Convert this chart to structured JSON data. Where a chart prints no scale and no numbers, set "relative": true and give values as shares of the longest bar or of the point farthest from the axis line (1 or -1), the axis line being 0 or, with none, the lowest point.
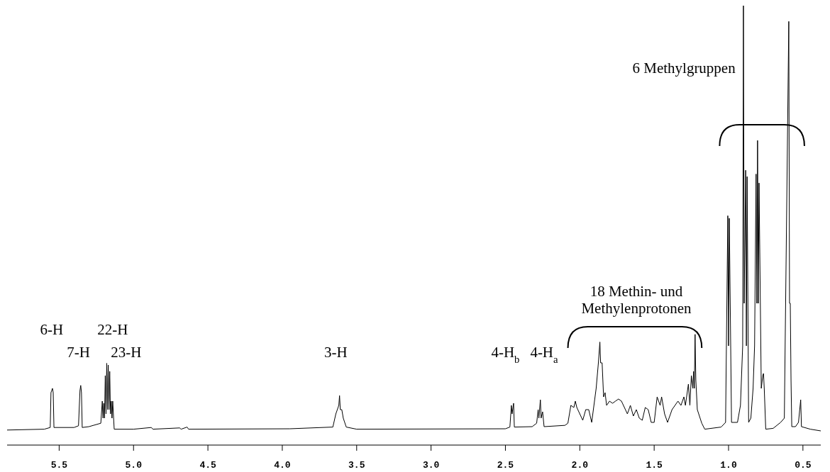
{
  "chart_data": {
    "type": "line",
    "relative": true,
    "xlim": [
      5.85,
      0.38
    ],
    "xticks": [
      {
        "value": 5.5,
        "label": "5.5"
      },
      {
        "value": 5.0,
        "label": "5.0"
      },
      {
        "value": 4.5,
        "label": "4.5"
      },
      {
        "value": 4.0,
        "label": "4.0"
      },
      {
        "value": 3.5,
        "label": "3.5"
      },
      {
        "value": 3.0,
        "label": "3.0"
      },
      {
        "value": 2.5,
        "label": "2.5"
      },
      {
        "value": 2.0,
        "label": "2.0"
      },
      {
        "value": 1.5,
        "label": "1.5"
      },
      {
        "value": 1.0,
        "label": "1.0"
      },
      {
        "value": 0.5,
        "label": "0.5"
      }
    ],
    "x": [
      5.85,
      5.6,
      5.56,
      5.555,
      5.545,
      5.54,
      5.535,
      5.4,
      5.37,
      5.36,
      5.355,
      5.35,
      5.345,
      5.3,
      5.22,
      5.21,
      5.205,
      5.2,
      5.195,
      5.19,
      5.185,
      5.18,
      5.175,
      5.17,
      5.165,
      5.16,
      5.155,
      5.15,
      5.145,
      5.14,
      5.13,
      5.0,
      4.88,
      4.87,
      4.69,
      4.68,
      4.64,
      4.63,
      3.95,
      3.66,
      3.64,
      3.63,
      3.62,
      3.615,
      3.61,
      3.6,
      3.59,
      3.57,
      3.5,
      2.5,
      2.47,
      2.46,
      2.455,
      2.445,
      2.44,
      2.32,
      2.29,
      2.28,
      2.275,
      2.265,
      2.26,
      2.25,
      2.24,
      2.1,
      2.08,
      2.06,
      2.04,
      2.03,
      2.02,
      2.0,
      1.98,
      1.96,
      1.94,
      1.92,
      1.89,
      1.875,
      1.865,
      1.86,
      1.85,
      1.84,
      1.83,
      1.82,
      1.8,
      1.78,
      1.76,
      1.74,
      1.72,
      1.7,
      1.68,
      1.66,
      1.64,
      1.62,
      1.6,
      1.58,
      1.56,
      1.54,
      1.52,
      1.5,
      1.48,
      1.46,
      1.45,
      1.43,
      1.41,
      1.38,
      1.36,
      1.34,
      1.32,
      1.3,
      1.29,
      1.27,
      1.26,
      1.25,
      1.24,
      1.235,
      1.23,
      1.225,
      1.22,
      1.21,
      1.18,
      1.16,
      1.05,
      1.02,
      1.005,
      1.0,
      0.995,
      0.98,
      0.94,
      0.92,
      0.905,
      0.9,
      0.895,
      0.885,
      0.88,
      0.875,
      0.865,
      0.85,
      0.835,
      0.825,
      0.815,
      0.81,
      0.805,
      0.8,
      0.795,
      0.78,
      0.77,
      0.765,
      0.76,
      0.75,
      0.7,
      0.65,
      0.625,
      0.595,
      0.59,
      0.585,
      0.58,
      0.575,
      0.55,
      0.53,
      0.515,
      0.51,
      0.45,
      0.38
    ],
    "values": [
      0.002,
      0.004,
      0.008,
      0.09,
      0.1,
      0.09,
      0.008,
      0.008,
      0.012,
      0.095,
      0.107,
      0.09,
      0.008,
      0.01,
      0.018,
      0.07,
      0.03,
      0.065,
      0.03,
      0.13,
      0.04,
      0.159,
      0.05,
      0.155,
      0.05,
      0.14,
      0.04,
      0.07,
      0.03,
      0.07,
      0.004,
      0.004,
      0.008,
      0.004,
      0.007,
      0.004,
      0.009,
      0.004,
      0.005,
      0.009,
      0.04,
      0.05,
      0.06,
      0.083,
      0.05,
      0.05,
      0.03,
      0.009,
      0.004,
      0.005,
      0.009,
      0.06,
      0.04,
      0.065,
      0.009,
      0.01,
      0.018,
      0.05,
      0.03,
      0.073,
      0.03,
      0.045,
      0.01,
      0.013,
      0.018,
      0.06,
      0.055,
      0.07,
      0.055,
      0.04,
      0.025,
      0.05,
      0.05,
      0.02,
      0.1,
      0.16,
      0.209,
      0.16,
      0.16,
      0.08,
      0.09,
      0.06,
      0.07,
      0.065,
      0.07,
      0.075,
      0.07,
      0.055,
      0.04,
      0.06,
      0.035,
      0.05,
      0.03,
      0.025,
      0.055,
      0.05,
      0.02,
      0.02,
      0.08,
      0.06,
      0.08,
      0.04,
      0.02,
      0.05,
      0.06,
      0.07,
      0.06,
      0.08,
      0.06,
      0.11,
      0.06,
      0.13,
      0.1,
      0.14,
      0.1,
      0.227,
      0.12,
      0.05,
      0.018,
      0.004,
      0.009,
      0.02,
      0.506,
      0.2,
      0.5,
      0.02,
      0.02,
      0.06,
      0.2,
      1.0,
      0.3,
      0.613,
      0.2,
      0.598,
      0.02,
      0.03,
      0.1,
      0.2,
      0.604,
      0.3,
      0.683,
      0.3,
      0.583,
      0.1,
      0.13,
      0.135,
      0.1,
      0.004,
      0.006,
      0.02,
      0.03,
      0.963,
      0.3,
      0.3,
      0.12,
      0.01,
      0.01,
      0.02,
      0.073,
      0.01,
      0.004,
      0
    ],
    "color": "#000000",
    "marker": "none",
    "line_style": "solid",
    "annotations": [
      "6-H",
      "7-H",
      "22-H",
      "23-H",
      "3-H",
      "4-H$_{b}$",
      "4-H$_{a}$",
      "18 Methin- und\nMethylenprotonen",
      "6 Methylgruppen"
    ]
  }
}
